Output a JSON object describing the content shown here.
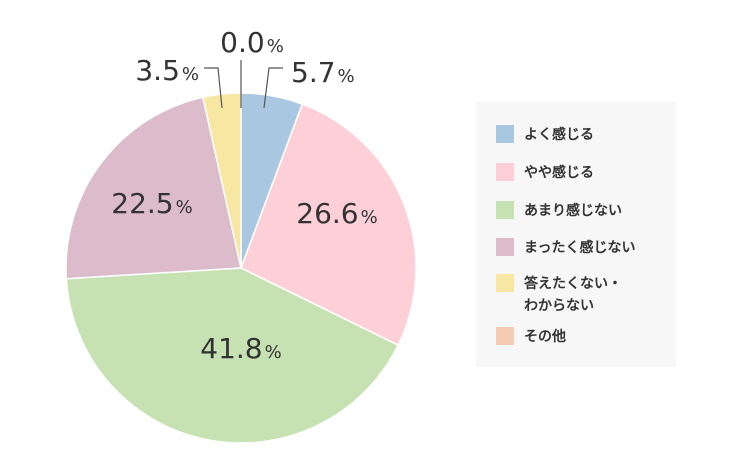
{
  "chart_data": {
    "type": "pie",
    "start_angle": "top",
    "direction": "clockwise",
    "slices": [
      {
        "label": "よく感じる",
        "value": 5.7,
        "display": "5.7",
        "color": "#a9c7e0"
      },
      {
        "label": "やや感じる",
        "value": 26.6,
        "display": "26.6",
        "color": "#fdd0d8"
      },
      {
        "label": "あまり感じない",
        "value": 41.8,
        "display": "41.8",
        "color": "#c6e2b3"
      },
      {
        "label": "まったく感じない",
        "value": 22.5,
        "display": "22.5",
        "color": "#dcbccb"
      },
      {
        "label": "答えたくない・\nわからない",
        "value": 3.5,
        "display": "3.5",
        "color": "#f7e7a3"
      },
      {
        "label": "その他",
        "value": 0.0,
        "display": "0.0",
        "color": "#f5cbb3"
      }
    ],
    "unit": "%",
    "legend_position": "right"
  }
}
